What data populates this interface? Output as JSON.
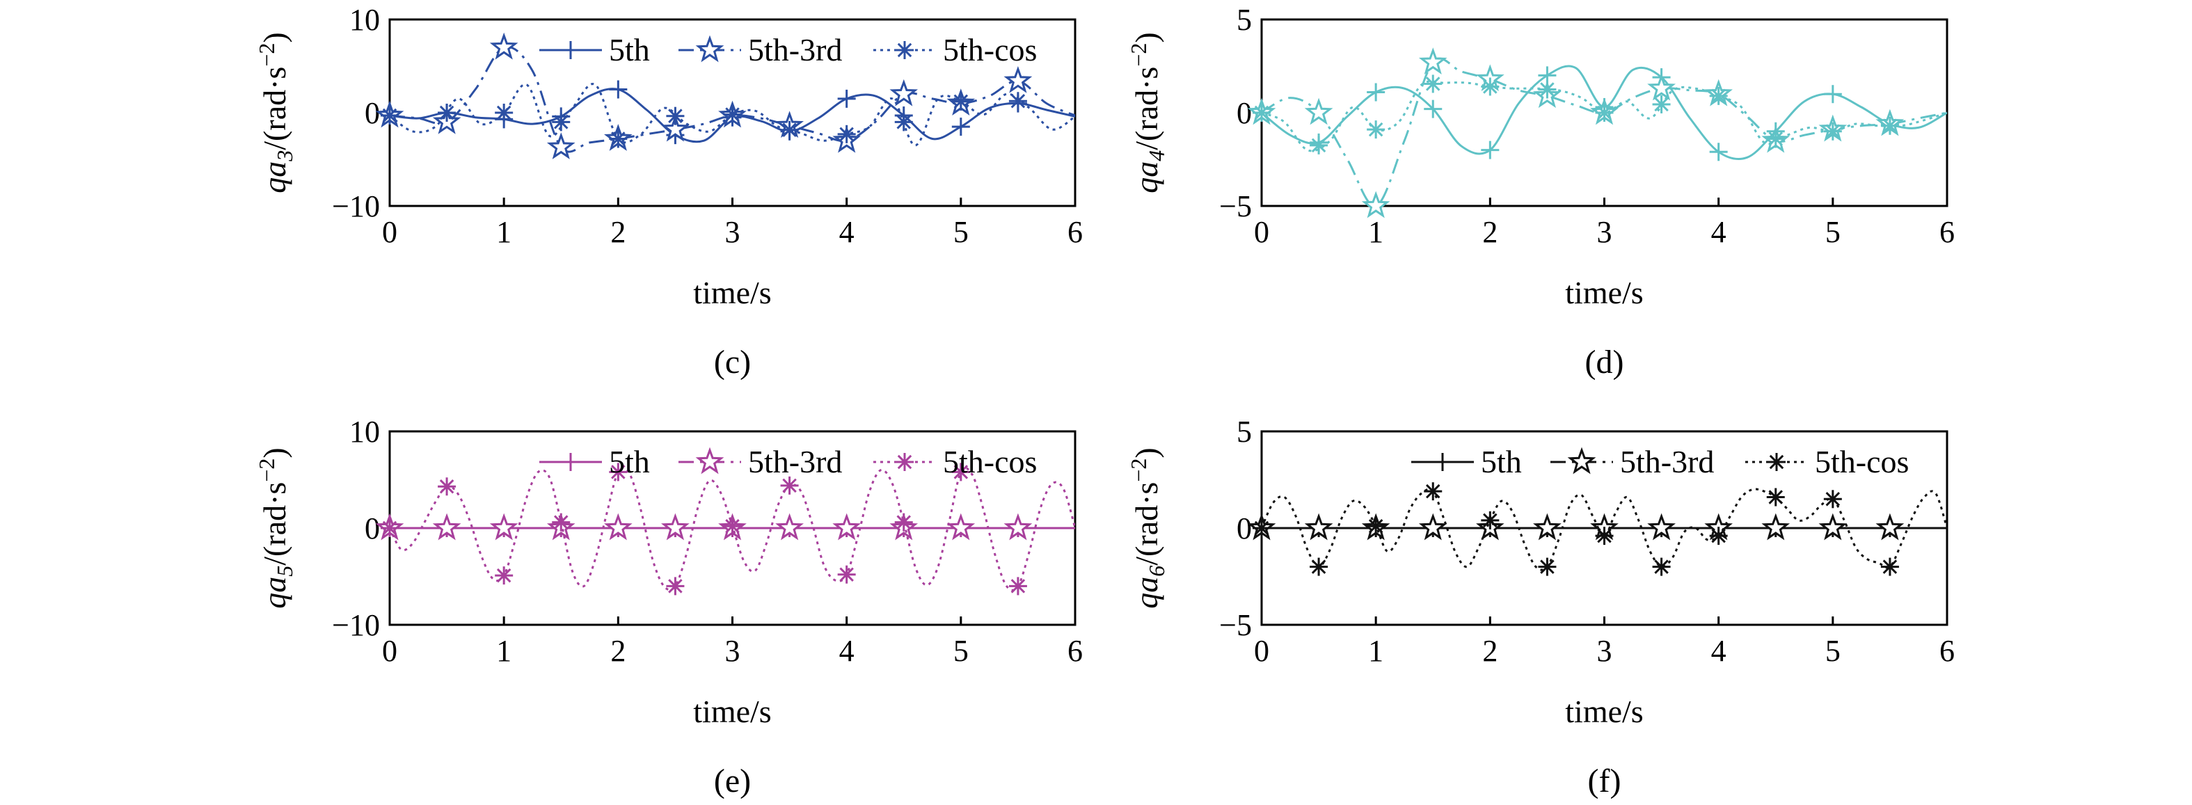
{
  "chart_data": [
    {
      "type": "line",
      "caption": "(c)",
      "xlabel": "time/s",
      "ylabel": {
        "sym": "qa",
        "sub": "3",
        "unit": "/(rad·s",
        "exp": "−2",
        "close": ")"
      },
      "xlim": [
        0,
        6
      ],
      "ylim": [
        -10,
        10
      ],
      "xticks": [
        "0",
        "1",
        "2",
        "3",
        "4",
        "5",
        "6"
      ],
      "yticks": [
        "10",
        "0",
        "−10"
      ],
      "ytick_values": [
        10,
        0,
        -10
      ],
      "color": "#2b4fa3",
      "legend": true,
      "legend_position": "top-right",
      "series": [
        {
          "name": "5th",
          "marker": "plus",
          "dash": "solid",
          "x": [
            0,
            0.25,
            0.5,
            0.75,
            1,
            1.25,
            1.5,
            1.75,
            2,
            2.25,
            2.5,
            2.75,
            3,
            3.25,
            3.5,
            3.75,
            4,
            4.25,
            4.5,
            4.75,
            5,
            5.25,
            5.5,
            5.75,
            6
          ],
          "y": [
            -0.3,
            -0.6,
            0,
            -0.5,
            -0.7,
            -1.2,
            -0.4,
            1.8,
            2.5,
            0.3,
            -2.4,
            -3,
            -0.5,
            -0.9,
            -2,
            -0.6,
            1.5,
            1.8,
            -0.3,
            -2.8,
            -1.5,
            0.5,
            1,
            0.3,
            -0.4
          ],
          "marker_x": [
            0,
            0.5,
            1,
            1.5,
            2,
            2.5,
            3,
            3.5,
            4,
            4.5,
            5,
            5.5
          ]
        },
        {
          "name": "5th-3rd",
          "marker": "star",
          "dash": "dashdot",
          "x": [
            0,
            0.25,
            0.5,
            0.75,
            1,
            1.25,
            1.5,
            1.75,
            2,
            2.25,
            2.5,
            2.75,
            3,
            3.25,
            3.5,
            3.75,
            4,
            4.25,
            4.5,
            4.75,
            5,
            5.25,
            5.5,
            5.75,
            6
          ],
          "y": [
            -0.3,
            -0.6,
            -1,
            2.5,
            7,
            4.5,
            -3.7,
            -3.2,
            -2.8,
            -2.3,
            -1.8,
            -1.2,
            -0.3,
            -0.6,
            -1.4,
            -2.2,
            -3,
            -1,
            2,
            1.5,
            1,
            1.8,
            3.4,
            1,
            -0.3
          ],
          "marker_x": [
            0,
            0.5,
            1,
            1.5,
            2,
            2.5,
            3,
            3.5,
            4,
            4.5,
            5,
            5.5
          ]
        },
        {
          "name": "5th-cos",
          "marker": "asterisk",
          "dash": "dotted",
          "x": [
            0,
            0.2,
            0.4,
            0.6,
            0.8,
            1,
            1.2,
            1.4,
            1.6,
            1.8,
            2,
            2.2,
            2.4,
            2.6,
            2.8,
            3,
            3.2,
            3.4,
            3.6,
            3.8,
            4,
            4.2,
            4.4,
            4.6,
            4.8,
            5,
            5.2,
            5.4,
            5.6,
            5.8,
            6
          ],
          "y": [
            -0.3,
            -2,
            -1.5,
            1.5,
            -1.2,
            0,
            3,
            -2.5,
            0.5,
            3,
            -2.8,
            -2.3,
            0.5,
            -1.2,
            -2,
            -0.2,
            0.2,
            -1.5,
            -2.2,
            -3,
            -2.3,
            -1.5,
            1.5,
            -3.5,
            1.5,
            1.2,
            -0.2,
            2,
            0.5,
            -1.8,
            -0.4
          ],
          "marker_x": [
            0,
            0.5,
            1,
            1.5,
            2,
            2.5,
            3,
            3.5,
            4,
            4.5,
            5,
            5.5
          ]
        }
      ]
    },
    {
      "type": "line",
      "caption": "(d)",
      "xlabel": "time/s",
      "ylabel": {
        "sym": "qa",
        "sub": "4",
        "unit": "/(rad·s",
        "exp": "−2",
        "close": ")"
      },
      "xlim": [
        0,
        6
      ],
      "ylim": [
        -5,
        5
      ],
      "xticks": [
        "0",
        "1",
        "2",
        "3",
        "4",
        "5",
        "6"
      ],
      "yticks": [
        "5",
        "0",
        "−5"
      ],
      "ytick_values": [
        5,
        0,
        -5
      ],
      "color": "#5fc2c6",
      "legend": false,
      "series": [
        {
          "name": "5th",
          "marker": "plus",
          "dash": "solid",
          "x": [
            0,
            0.25,
            0.5,
            0.75,
            1,
            1.25,
            1.5,
            1.75,
            2,
            2.25,
            2.5,
            2.75,
            3,
            3.25,
            3.5,
            3.75,
            4,
            4.25,
            4.5,
            4.75,
            5,
            5.25,
            5.5,
            5.75,
            6
          ],
          "y": [
            0,
            -1.2,
            -1.6,
            -0.2,
            1.1,
            1.3,
            0.2,
            -1.8,
            -2,
            0.5,
            2,
            2.4,
            0.3,
            2.3,
            1.9,
            -0.3,
            -2.1,
            -2.4,
            -1,
            0.6,
            1,
            0.3,
            -0.6,
            -0.8,
            0
          ],
          "marker_x": [
            0,
            0.5,
            1,
            1.5,
            2,
            2.5,
            3,
            3.5,
            4,
            4.5,
            5,
            5.5
          ]
        },
        {
          "name": "5th-3rd",
          "marker": "star",
          "dash": "dashdot",
          "x": [
            0,
            0.25,
            0.5,
            0.75,
            1,
            1.25,
            1.5,
            1.75,
            2,
            2.25,
            2.5,
            2.75,
            3,
            3.25,
            3.5,
            3.75,
            4,
            4.25,
            4.5,
            4.75,
            5,
            5.25,
            5.5,
            5.75,
            6
          ],
          "y": [
            0,
            0.8,
            0,
            -2.5,
            -5,
            -1.5,
            2.7,
            2.2,
            1.8,
            1.2,
            0.9,
            0.4,
            0,
            0.8,
            1.3,
            1.2,
            1,
            -0.2,
            -1.5,
            -1.2,
            -0.9,
            -0.7,
            -0.6,
            -0.3,
            0
          ],
          "marker_x": [
            0,
            0.5,
            1,
            1.5,
            2,
            2.5,
            3,
            3.5,
            4,
            4.5,
            5,
            5.5
          ]
        },
        {
          "name": "5th-cos",
          "marker": "asterisk",
          "dash": "dotted",
          "x": [
            0,
            0.2,
            0.4,
            0.6,
            0.8,
            1,
            1.2,
            1.4,
            1.6,
            1.8,
            2,
            2.2,
            2.4,
            2.6,
            2.8,
            3,
            3.2,
            3.4,
            3.6,
            3.8,
            4,
            4.2,
            4.4,
            4.6,
            4.8,
            5,
            5.2,
            5.4,
            5.6,
            5.8,
            6
          ],
          "y": [
            0,
            -0.5,
            -2,
            -1.5,
            0.3,
            -0.9,
            -0.5,
            1.5,
            1.6,
            1.6,
            1.4,
            1.3,
            1.3,
            1.2,
            0.8,
            0,
            0.6,
            -0.3,
            1.2,
            1.3,
            0.9,
            0.3,
            -1.6,
            -1.2,
            -0.8,
            -1,
            -0.6,
            -0.7,
            -0.7,
            -0.4,
            0
          ],
          "marker_x": [
            0,
            0.5,
            1,
            1.5,
            2,
            2.5,
            3,
            3.5,
            4,
            4.5,
            5,
            5.5
          ]
        }
      ]
    },
    {
      "type": "line",
      "caption": "(e)",
      "xlabel": "time/s",
      "ylabel": {
        "sym": "qa",
        "sub": "5",
        "unit": "/(rad·s",
        "exp": "−2",
        "close": ")"
      },
      "xlim": [
        0,
        6
      ],
      "ylim": [
        -10,
        10
      ],
      "xticks": [
        "0",
        "1",
        "2",
        "3",
        "4",
        "5",
        "6"
      ],
      "yticks": [
        "10",
        "0",
        "−10"
      ],
      "ytick_values": [
        10,
        0,
        -10
      ],
      "color": "#a8409c",
      "legend": true,
      "legend_position": "top-right",
      "series": [
        {
          "name": "5th",
          "marker": "plus",
          "dash": "solid",
          "x": [
            0,
            6
          ],
          "y": [
            0,
            0
          ],
          "marker_x": [
            0,
            0.5,
            1,
            1.5,
            2,
            2.5,
            3,
            3.5,
            4,
            4.5,
            5,
            5.5
          ]
        },
        {
          "name": "5th-3rd",
          "marker": "star",
          "dash": "dashdot",
          "x": [
            0,
            6
          ],
          "y": [
            0,
            0
          ],
          "marker_x": [
            0,
            0.5,
            1,
            1.5,
            2,
            2.5,
            3,
            3.5,
            4,
            4.5,
            5,
            5.5
          ]
        },
        {
          "name": "5th-cos",
          "marker": "asterisk",
          "dash": "dotted",
          "x": [
            0,
            0.1,
            0.2,
            0.3,
            0.4,
            0.5,
            0.6,
            0.7,
            0.8,
            0.9,
            1,
            1.1,
            1.2,
            1.3,
            1.4,
            1.5,
            1.6,
            1.7,
            1.8,
            1.9,
            2,
            2.1,
            2.2,
            2.3,
            2.4,
            2.5,
            2.6,
            2.7,
            2.8,
            2.9,
            3,
            3.1,
            3.2,
            3.3,
            3.4,
            3.5,
            3.6,
            3.7,
            3.8,
            3.9,
            4,
            4.1,
            4.2,
            4.3,
            4.4,
            4.5,
            4.6,
            4.7,
            4.8,
            4.9,
            5,
            5.1,
            5.2,
            5.3,
            5.4,
            5.5,
            5.6,
            5.7,
            5.8,
            5.9,
            6
          ],
          "y": [
            0,
            -2.2,
            -1.6,
            0.5,
            2.7,
            4.3,
            3.5,
            0.8,
            -2.8,
            -5.2,
            -4.9,
            -1.2,
            3.2,
            5.8,
            5.2,
            0.6,
            -4.5,
            -6,
            -3.2,
            1.5,
            5.8,
            5.6,
            1.8,
            -3.2,
            -6,
            -6,
            -2.6,
            2.2,
            4.9,
            3.6,
            0.2,
            -3.4,
            -4.4,
            -1.5,
            2.4,
            4.4,
            3.8,
            0.4,
            -3.8,
            -5.4,
            -4.8,
            -0.8,
            3.8,
            6,
            4.6,
            0.6,
            -4,
            -5.9,
            -4,
            0.8,
            5.8,
            5.5,
            1.8,
            -2.8,
            -6,
            -6,
            -2.4,
            2.2,
            4.6,
            4,
            0
          ],
          "marker_x": [
            0,
            0.5,
            1,
            1.5,
            2,
            2.5,
            3,
            3.5,
            4,
            4.5,
            5,
            5.5
          ]
        }
      ]
    },
    {
      "type": "line",
      "caption": "(f)",
      "xlabel": "time/s",
      "ylabel": {
        "sym": "qa",
        "sub": "6",
        "unit": "/(rad·s",
        "exp": "−2",
        "close": ")"
      },
      "xlim": [
        0,
        6
      ],
      "ylim": [
        -5,
        5
      ],
      "xticks": [
        "0",
        "1",
        "2",
        "3",
        "4",
        "5",
        "6"
      ],
      "yticks": [
        "5",
        "0",
        "−5"
      ],
      "ytick_values": [
        5,
        0,
        -5
      ],
      "color": "#111111",
      "legend": true,
      "legend_position": "top-right",
      "series": [
        {
          "name": "5th",
          "marker": "plus",
          "dash": "solid",
          "x": [
            0,
            6
          ],
          "y": [
            0,
            0
          ],
          "marker_x": [
            0,
            0.5,
            1,
            1.5,
            2,
            2.5,
            3,
            3.5,
            4,
            4.5,
            5,
            5.5
          ]
        },
        {
          "name": "5th-3rd",
          "marker": "star",
          "dash": "dashdot",
          "x": [
            0,
            6
          ],
          "y": [
            0,
            0
          ],
          "marker_x": [
            0,
            0.5,
            1,
            1.5,
            2,
            2.5,
            3,
            3.5,
            4,
            4.5,
            5,
            5.5
          ]
        },
        {
          "name": "5th-cos",
          "marker": "asterisk",
          "dash": "dotted",
          "x": [
            0,
            0.1,
            0.2,
            0.3,
            0.4,
            0.5,
            0.6,
            0.7,
            0.8,
            0.9,
            1,
            1.1,
            1.2,
            1.3,
            1.4,
            1.5,
            1.6,
            1.7,
            1.8,
            1.9,
            2,
            2.1,
            2.2,
            2.3,
            2.4,
            2.5,
            2.6,
            2.7,
            2.8,
            2.9,
            3,
            3.1,
            3.2,
            3.3,
            3.4,
            3.5,
            3.6,
            3.7,
            3.8,
            3.9,
            4,
            4.1,
            4.2,
            4.3,
            4.4,
            4.5,
            4.6,
            4.7,
            4.8,
            4.9,
            5,
            5.1,
            5.2,
            5.3,
            5.4,
            5.5,
            5.6,
            5.7,
            5.8,
            5.9,
            6
          ],
          "y": [
            0,
            1.3,
            1.6,
            0.6,
            -1.1,
            -2,
            -1.1,
            0.5,
            1.4,
            1.1,
            0.1,
            -1.2,
            -0.5,
            1,
            1.8,
            1.9,
            0.4,
            -1.3,
            -2,
            -1,
            0.4,
            1.4,
            0.8,
            -0.8,
            -2,
            -2,
            -0.6,
            1.2,
            1.7,
            0.6,
            -0.4,
            0.8,
            1.6,
            0.4,
            -1.2,
            -2,
            -1.5,
            -0.2,
            0,
            -0.6,
            -0.4,
            0.6,
            1.6,
            2,
            1.9,
            1.6,
            1,
            0.4,
            0.6,
            1.2,
            1.5,
            0.4,
            -1,
            -1.6,
            -1.8,
            -2,
            -0.8,
            0.6,
            1.6,
            1.8,
            0
          ],
          "marker_x": [
            0,
            0.5,
            1,
            1.5,
            2,
            2.5,
            3,
            3.5,
            4,
            4.5,
            5,
            5.5
          ]
        }
      ]
    }
  ]
}
